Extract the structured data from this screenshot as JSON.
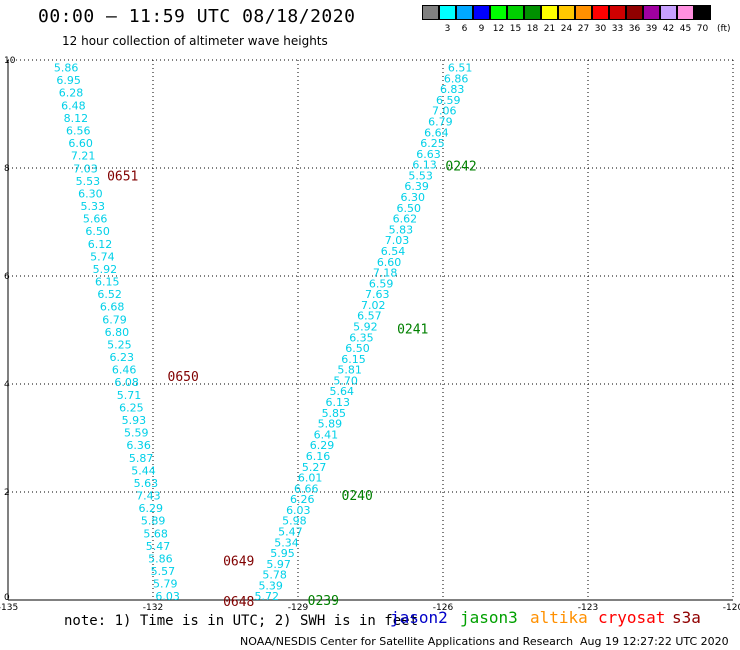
{
  "header": {
    "title": "00:00 – 11:59 UTC 08/18/2020",
    "subtitle": "12 hour collection of altimeter wave heights"
  },
  "legend": {
    "unit": "(ft)",
    "colors": [
      "#808080",
      "#00ffff",
      "#00a8ff",
      "#0000ff",
      "#00ff00",
      "#00d000",
      "#009000",
      "#ffff00",
      "#ffc800",
      "#ff9000",
      "#ff0000",
      "#d00000",
      "#900000",
      "#a000a0",
      "#c8a0ff",
      "#ff90e0",
      "#000000"
    ],
    "labels": [
      "3",
      "6",
      "9",
      "12",
      "15",
      "18",
      "21",
      "24",
      "27",
      "30",
      "33",
      "36",
      "39",
      "42",
      "45",
      "70"
    ]
  },
  "axes": {
    "x": {
      "min": -135,
      "max": -120,
      "ticks": [
        "-135",
        "-132",
        "-129",
        "-126",
        "-123",
        "-120"
      ]
    },
    "y": {
      "min": 0,
      "max": 10,
      "ticks": [
        "0",
        "2",
        "4",
        "6",
        "8",
        "10"
      ]
    },
    "grid": true
  },
  "tracks": [
    {
      "name": "track-west",
      "start": [
        -134.05,
        9.86
      ],
      "end": [
        -131.95,
        0.07
      ],
      "color": "#00d0e8",
      "values": [
        "5.86",
        "6.95",
        "6.28",
        "6.48",
        "8.12",
        "6.56",
        "6.60",
        "7.21",
        "7.03",
        "5.53",
        "6.30",
        "5.33",
        "5.66",
        "6.50",
        "6.12",
        "5.74",
        "5.92",
        "6.15",
        "6.52",
        "6.68",
        "6.79",
        "6.80",
        "5.25",
        "6.23",
        "6.46",
        "6.08",
        "5.71",
        "6.25",
        "5.93",
        "5.59",
        "6.36",
        "5.87",
        "5.44",
        "5.63",
        "7.43",
        "6.29",
        "5.89",
        "5.68",
        "5.47",
        "5.86",
        "5.57",
        "5.79",
        "6.03"
      ]
    },
    {
      "name": "track-east",
      "start": [
        -125.9,
        9.86
      ],
      "end": [
        -129.9,
        0.07
      ],
      "color": "#00d0e8",
      "values": [
        "6.51",
        "6.86",
        "6.83",
        "6.59",
        "7.06",
        "6.79",
        "6.64",
        "6.25",
        "6.63",
        "6.13",
        "5.53",
        "6.39",
        "6.30",
        "6.50",
        "6.62",
        "5.83",
        "7.03",
        "6.54",
        "6.60",
        "7.18",
        "6.59",
        "7.63",
        "7.02",
        "6.57",
        "5.92",
        "6.35",
        "6.50",
        "6.15",
        "5.81",
        "5.70",
        "5.64",
        "6.13",
        "5.85",
        "5.89",
        "6.41",
        "6.29",
        "6.16",
        "5.27",
        "6.01",
        "6.66",
        "6.26",
        "6.03",
        "5.98",
        "5.47",
        "5.34",
        "5.95",
        "5.97",
        "5.78",
        "5.39",
        "5.72"
      ]
    }
  ],
  "passes": [
    {
      "label": "0651",
      "lon": -132.95,
      "lat": 7.86,
      "color": "#800000"
    },
    {
      "label": "0650",
      "lon": -131.7,
      "lat": 4.15,
      "color": "#800000"
    },
    {
      "label": "0649",
      "lon": -130.55,
      "lat": 0.73,
      "color": "#800000"
    },
    {
      "label": "0648",
      "lon": -130.55,
      "lat": -0.02,
      "color": "#800000"
    },
    {
      "label": "0242",
      "lon": -125.95,
      "lat": 8.05,
      "color": "#008000"
    },
    {
      "label": "0241",
      "lon": -126.95,
      "lat": 5.03,
      "color": "#008000"
    },
    {
      "label": "0240",
      "lon": -128.1,
      "lat": 1.94,
      "color": "#008000"
    },
    {
      "label": "0239",
      "lon": -128.8,
      "lat": 0.0,
      "color": "#008000"
    }
  ],
  "footer": {
    "note": "note: 1) Time is in UTC; 2) SWH is in feet",
    "missions": [
      {
        "label": "jason2",
        "color": "#0000c8"
      },
      {
        "label": "jason3",
        "color": "#00a000"
      },
      {
        "label": "altika",
        "color": "#ff9000"
      },
      {
        "label": "cryosat",
        "color": "#ff0000"
      },
      {
        "label": "s3a",
        "color": "#900000"
      }
    ],
    "credit": "NOAA/NESDIS Center for Satellite Applications and Research",
    "timestamp": "Aug 19 12:27:22 UTC 2020"
  }
}
